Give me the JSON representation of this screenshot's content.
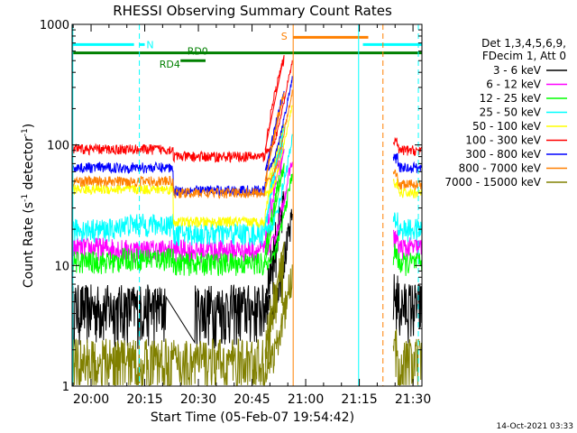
{
  "chart_data": {
    "type": "line",
    "title": "RHESSI Observing Summary Count Rates",
    "xlabel": "Start Time (05-Feb-07 19:54:42)",
    "ylabel_main": "Count Rate (s",
    "ylabel_sup1": "-1",
    "ylabel_mid": " detector",
    "ylabel_sup2": "-1",
    "ylabel_end": ")",
    "yscale": "log",
    "xlim_minutes": [
      1194.7,
      1292.5
    ],
    "ylim": [
      1,
      1000
    ],
    "xticks": [
      {
        "minutes": 1200,
        "label": "20:00"
      },
      {
        "minutes": 1215,
        "label": "20:15"
      },
      {
        "minutes": 1230,
        "label": "20:30"
      },
      {
        "minutes": 1245,
        "label": "20:45"
      },
      {
        "minutes": 1260,
        "label": "21:00"
      },
      {
        "minutes": 1275,
        "label": "21:15"
      },
      {
        "minutes": 1290,
        "label": "21:30"
      }
    ],
    "yticks": [
      {
        "value": 1,
        "label": "1"
      },
      {
        "value": 10,
        "label": "10"
      },
      {
        "value": 100,
        "label": "100"
      },
      {
        "value": 1000,
        "label": "1000"
      }
    ],
    "legend": {
      "position": "right",
      "header": [
        "Det 1,3,4,5,6,9,",
        "FDecim 1, Att 0"
      ]
    },
    "series": [
      {
        "name": "3 - 6 keV",
        "color": "#000000",
        "before": 4.5,
        "after": 4.7,
        "segments": [
          [
            1194.7,
            1221,
            4.5
          ],
          [
            1229,
            1254,
            4.5
          ]
        ]
      },
      {
        "name": "6 - 12 keV",
        "color": "#ff00ff",
        "before": 14,
        "after": 14,
        "segments": [
          [
            1194.7,
            1208,
            14
          ],
          [
            1208,
            1223,
            13.5
          ],
          [
            1223,
            1254,
            13.5
          ]
        ]
      },
      {
        "name": "12 - 25 keV",
        "color": "#00ff00",
        "before": 10.5,
        "after": 10.5,
        "segments": [
          [
            1194.7,
            1208,
            10.8
          ],
          [
            1208,
            1223,
            11.5
          ],
          [
            1223,
            1254,
            10.5
          ]
        ]
      },
      {
        "name": "25 - 50 keV",
        "color": "#00ffff",
        "before": 20,
        "after": 20,
        "segments": [
          [
            1194.7,
            1208,
            20
          ],
          [
            1208,
            1223,
            22
          ],
          [
            1223,
            1254,
            18.5
          ]
        ]
      },
      {
        "name": "50 - 100 keV",
        "color": "#ffff00",
        "before": 40,
        "after": 40,
        "segments": [
          [
            1194.7,
            1223,
            43
          ],
          [
            1223,
            1254,
            23
          ]
        ]
      },
      {
        "name": "100 - 300 keV",
        "color": "#ff0000",
        "before": 90,
        "after": 90,
        "segments": [
          [
            1194.7,
            1223,
            92
          ],
          [
            1223,
            1254,
            80
          ]
        ]
      },
      {
        "name": "300 - 800 keV",
        "color": "#0000ff",
        "before": 65,
        "after": 65,
        "segments": [
          [
            1194.7,
            1223,
            65
          ],
          [
            1223,
            1254,
            42
          ]
        ]
      },
      {
        "name": "800 - 7000 keV",
        "color": "#ff8000",
        "before": 50,
        "after": 47,
        "segments": [
          [
            1194.7,
            1223,
            50
          ],
          [
            1223,
            1254,
            40
          ]
        ]
      },
      {
        "name": "7000 - 15000 keV",
        "color": "#808000",
        "before": 1.6,
        "after": 1.6,
        "segments": [
          [
            1194.7,
            1254,
            1.6
          ]
        ]
      }
    ],
    "flag_bars": [
      {
        "label": "N",
        "color": "#00ffff",
        "level": 680,
        "ranges": [
          [
            1194.7,
            1212
          ],
          [
            1213.5,
            1215
          ],
          [
            1276,
            1292.5
          ]
        ]
      },
      {
        "label": "S",
        "color": "#ff8000",
        "level": 780,
        "ranges": [
          [
            1256.5,
            1277.5
          ]
        ]
      },
      {
        "label": "RD0",
        "color": "#008000",
        "level": 580,
        "ranges": [
          [
            1194.7,
            1292.5
          ]
        ]
      },
      {
        "label": "RD4",
        "color": "#008000",
        "level": 500,
        "ranges": [
          [
            1225,
            1232
          ]
        ]
      }
    ],
    "vlines": [
      {
        "minutes": 1194.9,
        "color": "#00ffff",
        "style": "solid"
      },
      {
        "minutes": 1213.5,
        "color": "#00ffff",
        "style": "dashed"
      },
      {
        "minutes": 1256.5,
        "color": "#ff8000",
        "style": "solid"
      },
      {
        "minutes": 1274.8,
        "color": "#00ffff",
        "style": "solid"
      },
      {
        "minutes": 1281.6,
        "color": "#ff8000",
        "style": "dashed"
      },
      {
        "minutes": 1291.5,
        "color": "#00ffff",
        "style": "dashed"
      }
    ],
    "data_gap_minutes": [
      1256.5,
      1284.5
    ]
  },
  "footer": {
    "date": "14-Oct-2021 03:33"
  }
}
